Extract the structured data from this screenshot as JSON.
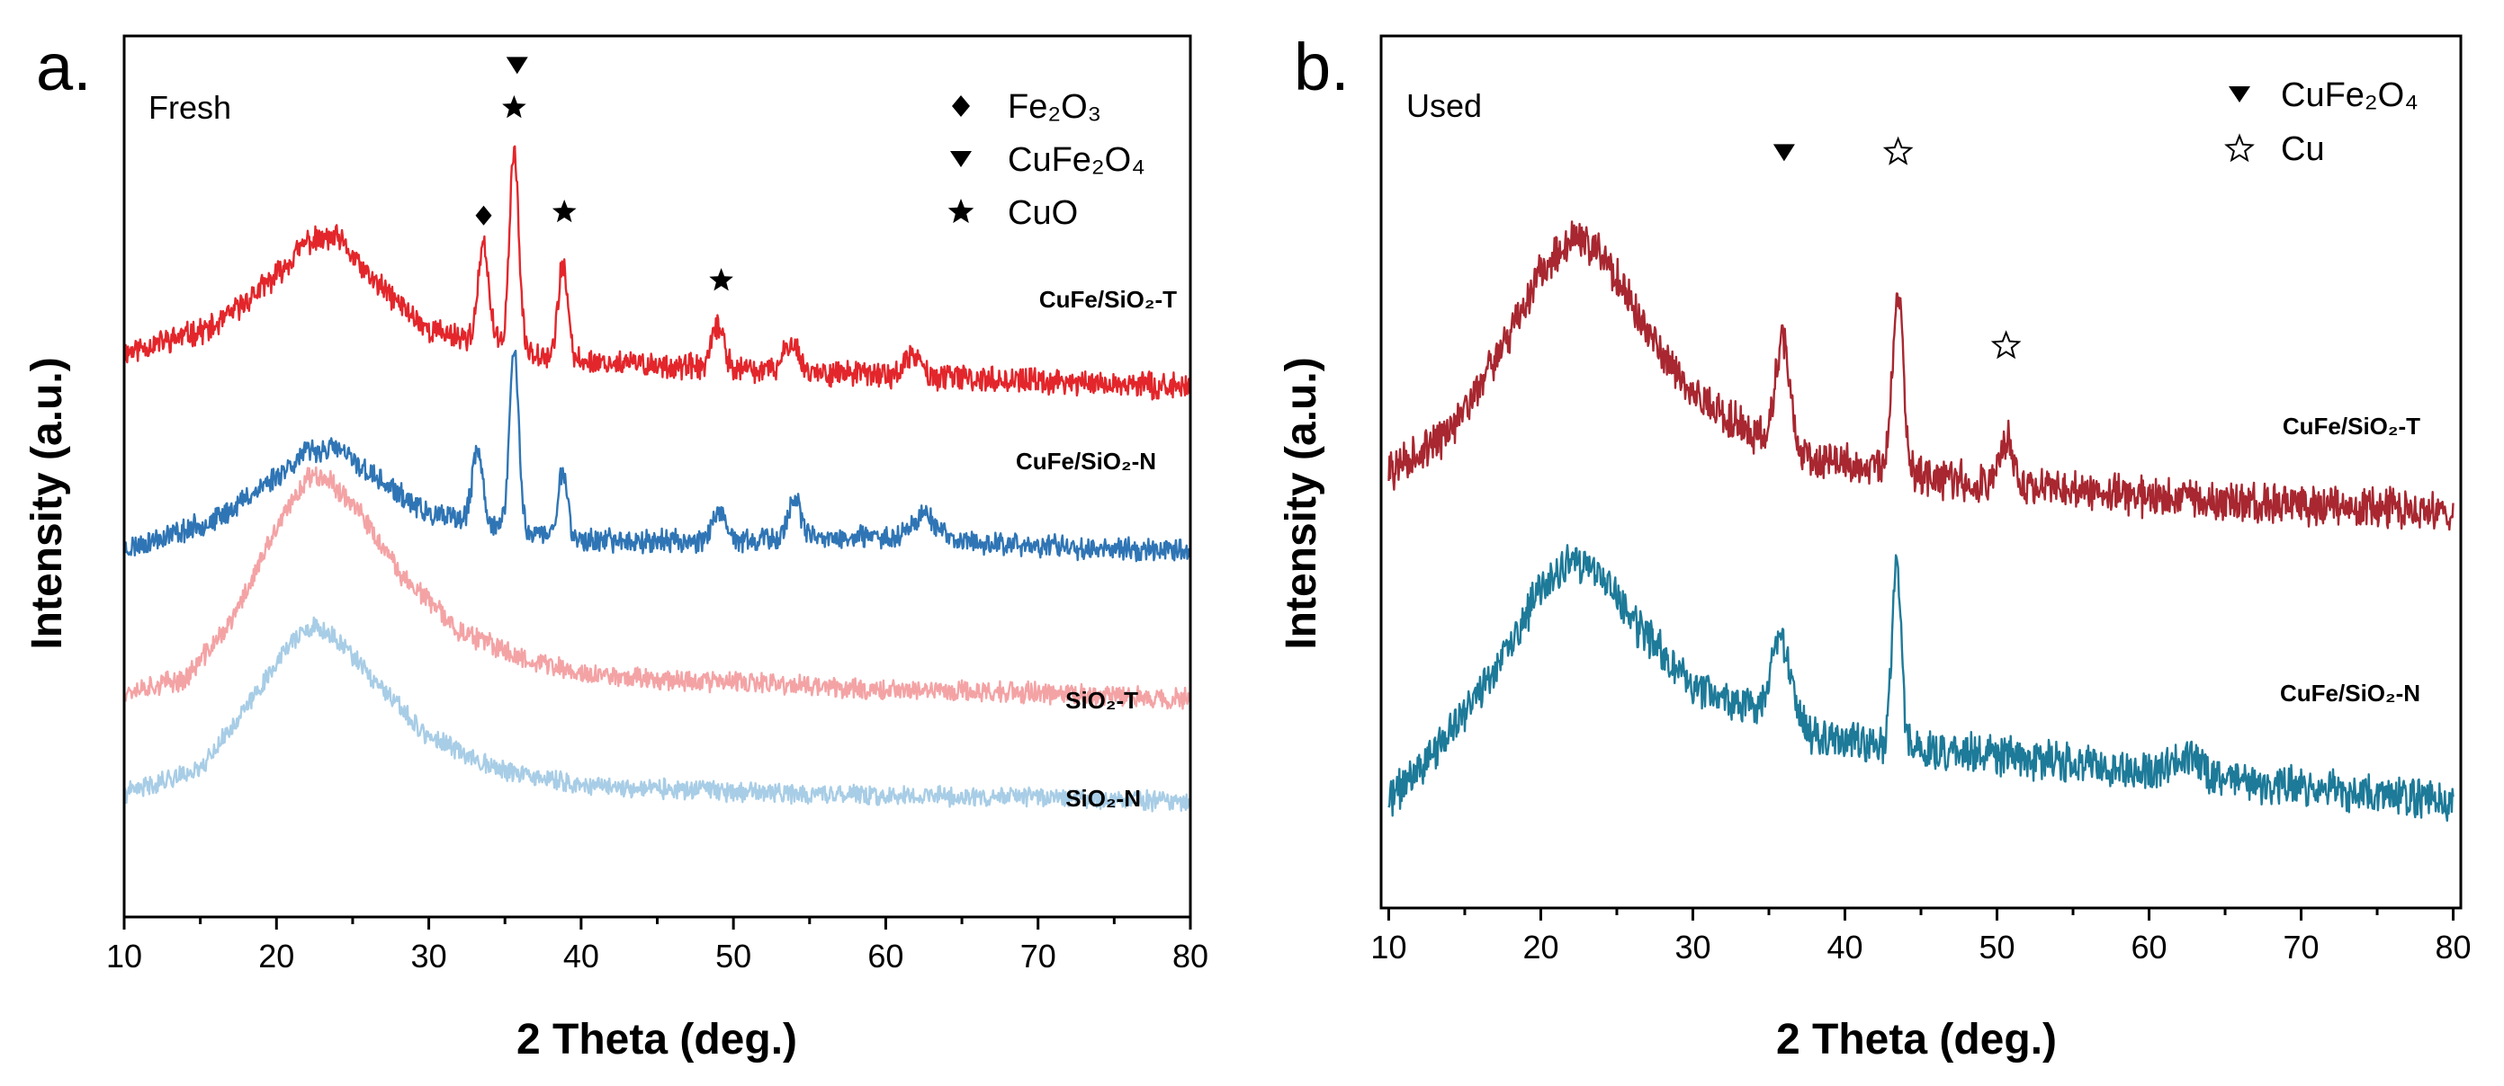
{
  "chart_data": [
    {
      "type": "line",
      "panel_label": "a.",
      "condition_label": "Fresh",
      "xlabel": "2 Theta (deg.)",
      "ylabel": "Intensity (a.u.)",
      "xlim": [
        10,
        80
      ],
      "xticks": [
        10,
        20,
        30,
        40,
        50,
        60,
        70,
        80
      ],
      "grid": false,
      "legend_position": "top-right",
      "legend": [
        {
          "marker": "diamond",
          "label": "Fe₂O₃"
        },
        {
          "marker": "triangle-down",
          "label": "CuFe₂O₄"
        },
        {
          "marker": "star",
          "label": "CuO"
        }
      ],
      "series": [
        {
          "name": "CuFe/SiO₂-T",
          "color": "#e3262b",
          "offset": 2.5,
          "baseline": [
            [
              10,
              0.25
            ],
            [
              16,
              0.4
            ],
            [
              20,
              0.7
            ],
            [
              22,
              0.9
            ],
            [
              24,
              0.92
            ],
            [
              26,
              0.7
            ],
            [
              30,
              0.38
            ],
            [
              40,
              0.2
            ],
            [
              50,
              0.15
            ],
            [
              60,
              0.12
            ],
            [
              70,
              0.08
            ],
            [
              80,
              0.05
            ]
          ],
          "peaks": [
            [
              33.6,
              0.55,
              0.35
            ],
            [
              35.6,
              1.15,
              0.3
            ],
            [
              38.8,
              0.55,
              0.3
            ],
            [
              49.0,
              0.25,
              0.4
            ],
            [
              53.8,
              0.18,
              0.45
            ],
            [
              61.8,
              0.12,
              0.5
            ]
          ],
          "noise": 0.065,
          "seed": 11
        },
        {
          "name": "CuFe/SiO₂-N",
          "color": "#2f75b5",
          "offset": 1.55,
          "baseline": [
            [
              10,
              0.05
            ],
            [
              16,
              0.22
            ],
            [
              20,
              0.48
            ],
            [
              22,
              0.62
            ],
            [
              24,
              0.64
            ],
            [
              26,
              0.5
            ],
            [
              30,
              0.25
            ],
            [
              40,
              0.1
            ],
            [
              50,
              0.1
            ],
            [
              60,
              0.12
            ],
            [
              70,
              0.07
            ],
            [
              80,
              0.04
            ]
          ],
          "peaks": [
            [
              33.2,
              0.42,
              0.35
            ],
            [
              35.6,
              1.05,
              0.3
            ],
            [
              38.8,
              0.4,
              0.3
            ],
            [
              49.0,
              0.15,
              0.45
            ],
            [
              54.0,
              0.25,
              0.4
            ],
            [
              62.5,
              0.15,
              0.8
            ]
          ],
          "noise": 0.06,
          "seed": 23
        },
        {
          "name": "SiO₂-T",
          "color": "#f4a3a5",
          "offset": 0.72,
          "baseline": [
            [
              10,
              0.05
            ],
            [
              14,
              0.12
            ],
            [
              17,
              0.45
            ],
            [
              20,
              1.0
            ],
            [
              22,
              1.3
            ],
            [
              23,
              1.32
            ],
            [
              25,
              1.15
            ],
            [
              28,
              0.75
            ],
            [
              32,
              0.4
            ],
            [
              36,
              0.25
            ],
            [
              40,
              0.15
            ],
            [
              50,
              0.1
            ],
            [
              60,
              0.06
            ],
            [
              70,
              0.04
            ],
            [
              80,
              0.0
            ]
          ],
          "peaks": [],
          "noise": 0.055,
          "seed": 37
        },
        {
          "name": "SiO₂-N",
          "color": "#a8cde6",
          "offset": 0.12,
          "baseline": [
            [
              10,
              0.05
            ],
            [
              15,
              0.2
            ],
            [
              18,
              0.55
            ],
            [
              21,
              0.95
            ],
            [
              22.5,
              1.02
            ],
            [
              24,
              0.95
            ],
            [
              27,
              0.65
            ],
            [
              30,
              0.38
            ],
            [
              35,
              0.18
            ],
            [
              40,
              0.1
            ],
            [
              50,
              0.06
            ],
            [
              60,
              0.04
            ],
            [
              70,
              0.03
            ],
            [
              80,
              0.0
            ]
          ],
          "peaks": [],
          "noise": 0.05,
          "seed": 41
        }
      ],
      "annotations": [
        {
          "marker": "diamond",
          "x": 33.6,
          "y": 3.55
        },
        {
          "marker": "star",
          "x": 35.6,
          "y": 4.18
        },
        {
          "marker": "triangle-down",
          "x": 35.8,
          "y": 4.43
        },
        {
          "marker": "star",
          "x": 38.9,
          "y": 3.57
        },
        {
          "marker": "star",
          "x": 49.2,
          "y": 3.17
        }
      ],
      "ylim": [
        -0.55,
        4.6
      ]
    },
    {
      "type": "line",
      "panel_label": "b.",
      "condition_label": "Used",
      "xlabel": "2 Theta (deg.)",
      "ylabel": "Intensity (a.u.)",
      "xlim": [
        10,
        80
      ],
      "xticks": [
        10,
        20,
        30,
        40,
        50,
        60,
        70,
        80
      ],
      "grid": false,
      "legend_position": "top-right",
      "legend": [
        {
          "marker": "triangle-down",
          "label": "CuFe₂O₄"
        },
        {
          "marker": "star-open",
          "label": "Cu"
        }
      ],
      "series": [
        {
          "name": "CuFe/SiO₂-T",
          "color": "#a82730",
          "offset": 2.0,
          "baseline": [
            [
              10,
              0.25
            ],
            [
              14,
              0.45
            ],
            [
              18,
              0.95
            ],
            [
              20,
              1.3
            ],
            [
              22,
              1.45
            ],
            [
              24,
              1.4
            ],
            [
              26,
              1.1
            ],
            [
              30,
              0.65
            ],
            [
              34,
              0.45
            ],
            [
              38,
              0.32
            ],
            [
              42,
              0.28
            ],
            [
              46,
              0.22
            ],
            [
              50,
              0.18
            ],
            [
              60,
              0.12
            ],
            [
              70,
              0.08
            ],
            [
              80,
              0.05
            ]
          ],
          "peaks": [
            [
              35.9,
              0.55,
              0.45
            ],
            [
              43.5,
              0.9,
              0.35
            ],
            [
              50.6,
              0.25,
              0.4
            ]
          ],
          "noise": 0.09,
          "seed": 57
        },
        {
          "name": "CuFe/SiO₂-N",
          "color": "#1d7a99",
          "offset": 0.5,
          "baseline": [
            [
              10,
              0.05
            ],
            [
              14,
              0.4
            ],
            [
              18,
              0.85
            ],
            [
              20,
              1.15
            ],
            [
              22,
              1.28
            ],
            [
              24,
              1.22
            ],
            [
              26,
              0.98
            ],
            [
              30,
              0.65
            ],
            [
              34,
              0.52
            ],
            [
              38,
              0.4
            ],
            [
              42,
              0.35
            ],
            [
              46,
              0.32
            ],
            [
              50,
              0.28
            ],
            [
              60,
              0.2
            ],
            [
              70,
              0.12
            ],
            [
              80,
              0.05
            ]
          ],
          "peaks": [
            [
              35.8,
              0.42,
              0.6
            ],
            [
              43.4,
              0.95,
              0.3
            ],
            [
              62.5,
              0.12,
              0.8
            ]
          ],
          "noise": 0.09,
          "seed": 71
        }
      ],
      "annotations": [
        {
          "marker": "triangle-down",
          "x": 36.0,
          "y": 3.9
        },
        {
          "marker": "star-open",
          "x": 43.5,
          "y": 3.9
        },
        {
          "marker": "star-open",
          "x": 50.6,
          "y": 2.9
        }
      ],
      "ylim": [
        0.0,
        4.5
      ]
    }
  ],
  "panels": [
    {
      "series_labels": [
        "CuFe/SiO₂-T",
        "CuFe/SiO₂-N",
        "SiO₂-T",
        "SiO₂-N"
      ]
    },
    {
      "series_labels": [
        "CuFe/SiO₂-T",
        "CuFe/SiO₂-N"
      ]
    }
  ]
}
